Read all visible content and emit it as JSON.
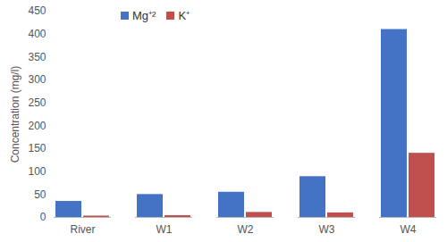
{
  "chart_data": {
    "type": "bar",
    "categories": [
      "River",
      "W1",
      "W2",
      "W3",
      "W4"
    ],
    "series": [
      {
        "name": "Mg⁺²",
        "color": "#4472c4",
        "values": [
          35,
          50,
          55,
          89,
          410
        ]
      },
      {
        "name": "K⁺",
        "color": "#c0504d",
        "values": [
          3,
          4,
          11,
          10,
          140
        ]
      }
    ],
    "y_label": "Concentration (mg/l)",
    "ylim": [
      0,
      450
    ],
    "yticks": [
      0,
      50,
      100,
      150,
      200,
      250,
      300,
      350,
      400,
      450
    ],
    "grid": false,
    "legend": "top-left"
  }
}
